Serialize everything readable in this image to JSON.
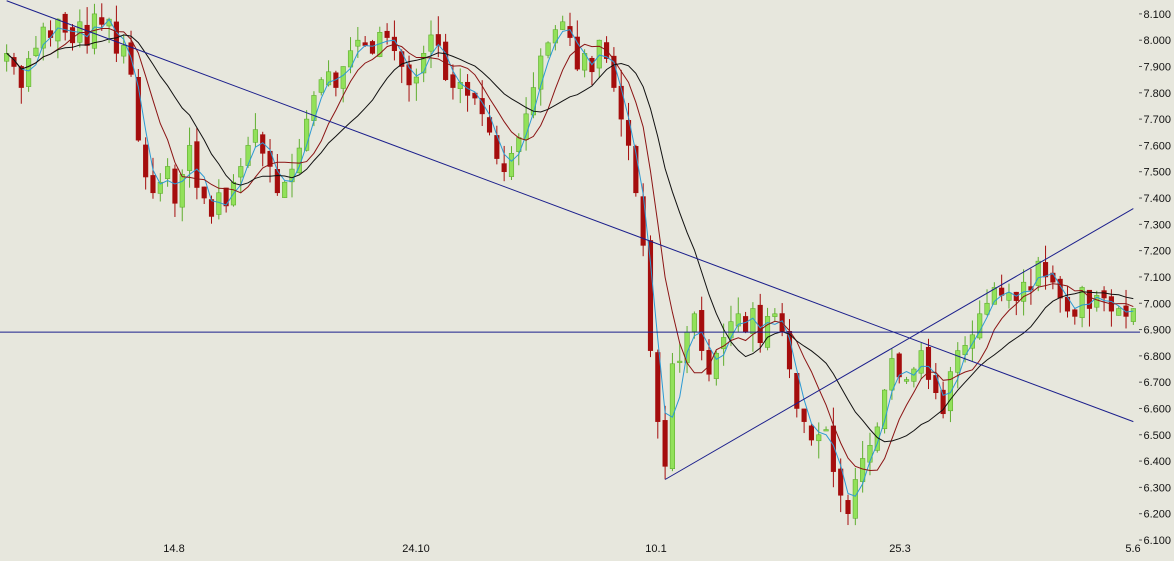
{
  "chart_data": {
    "type": "candlestick",
    "title": "",
    "xlabel": "",
    "ylabel": "",
    "ylim": [
      6.1,
      8.13
    ],
    "y_axis_position": "right",
    "grid": false,
    "legend": "none",
    "x_tick_labels": [
      "14.8",
      "24.10",
      "10.1",
      "25.3",
      "5.6"
    ],
    "y_tick_labels": [
      "6.100",
      "6.200",
      "6.300",
      "6.400",
      "6.500",
      "6.600",
      "6.700",
      "6.800",
      "6.900",
      "7.000",
      "7.100",
      "7.200",
      "7.300",
      "7.400",
      "7.500",
      "7.600",
      "7.700",
      "7.800",
      "7.900",
      "8.000",
      "8.100"
    ],
    "colors": {
      "background": "#e7e7dd",
      "up_candle": "#92e15a",
      "up_candle_border": "#5fae2e",
      "down_candle": "#a50d0d",
      "ma_fast": "#2c9ad4",
      "ma_medium": "#8b1414",
      "ma_slow": "#111111",
      "trendline": "#1b1f8c",
      "support_line": "#1b1f8c"
    },
    "horizontal_line": 6.89,
    "trendlines": [
      {
        "name": "descending",
        "points": [
          {
            "bar": 0,
            "y": 8.15
          },
          {
            "bar": 154,
            "y": 6.55
          }
        ]
      },
      {
        "name": "ascending",
        "points": [
          {
            "bar": 90,
            "y": 6.33
          },
          {
            "bar": 154,
            "y": 7.36
          }
        ]
      }
    ],
    "closes": [
      7.95,
      7.9,
      7.82,
      7.93,
      7.97,
      8.05,
      8.01,
      8.08,
      8.03,
      7.99,
      8.07,
      7.98,
      8.1,
      8.06,
      8.08,
      7.95,
      7.98,
      7.87,
      7.62,
      7.48,
      7.42,
      7.46,
      7.52,
      7.38,
      7.49,
      7.6,
      7.44,
      7.4,
      7.33,
      7.42,
      7.37,
      7.46,
      7.52,
      7.6,
      7.66,
      7.57,
      7.52,
      7.42,
      7.46,
      7.51,
      7.59,
      7.7,
      7.79,
      7.85,
      7.88,
      7.82,
      7.9,
      7.96,
      8.0,
      7.98,
      7.95,
      8.03,
      8.01,
      7.96,
      7.9,
      7.83,
      7.86,
      7.95,
      8.02,
      7.98,
      7.85,
      7.82,
      7.84,
      7.79,
      7.78,
      7.72,
      7.65,
      7.55,
      7.5,
      7.57,
      7.63,
      7.72,
      7.82,
      7.94,
      7.99,
      8.04,
      8.07,
      8.01,
      7.89,
      7.95,
      7.88,
      8.0,
      7.93,
      7.82,
      7.7,
      7.6,
      7.42,
      7.22,
      6.82,
      6.55,
      6.38,
      6.77,
      6.78,
      6.89,
      6.96,
      6.82,
      6.73,
      6.81,
      6.87,
      6.93,
      6.96,
      6.89,
      6.98,
      6.85,
      6.95,
      6.96,
      6.89,
      6.75,
      6.6,
      6.55,
      6.48,
      6.5,
      6.52,
      6.36,
      6.27,
      6.2,
      6.33,
      6.41,
      6.46,
      6.53,
      6.67,
      6.79,
      6.72,
      6.71,
      6.75,
      6.82,
      6.71,
      6.66,
      6.58,
      6.74,
      6.82,
      6.84,
      6.88,
      6.96,
      7.0,
      7.06,
      7.03,
      7.04,
      7.01,
      7.08,
      7.05,
      7.16,
      7.1,
      7.08,
      7.02,
      6.97,
      6.95,
      7.06,
      6.98,
      7.03,
      7.02,
      6.97,
      6.98,
      6.95,
      6.98
    ]
  }
}
